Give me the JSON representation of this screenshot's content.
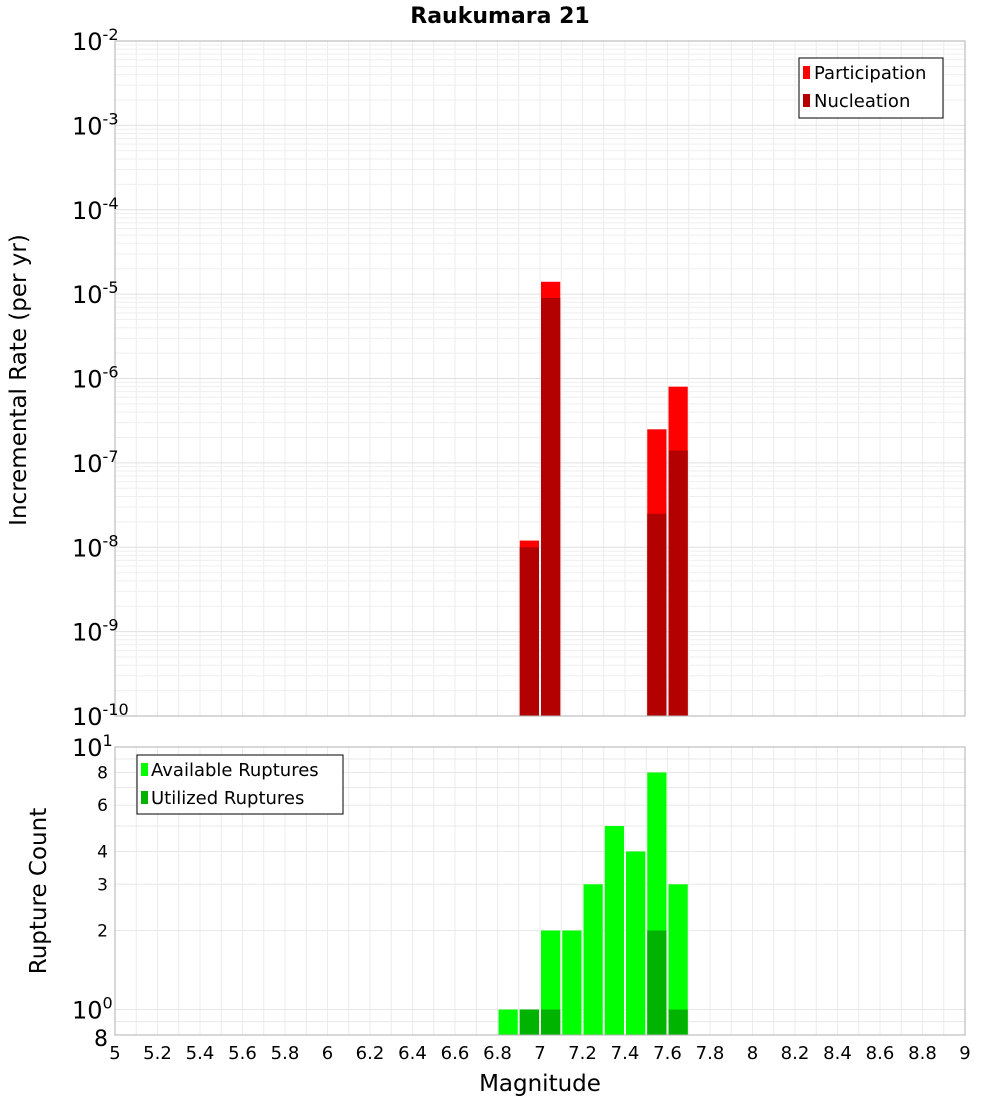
{
  "chart_data": [
    {
      "type": "bar",
      "title": "Raukumara 21",
      "xlabel": "",
      "ylabel": "Incremental Rate (per yr)",
      "yscale": "log",
      "xlim": [
        5,
        9
      ],
      "ylim": [
        1e-10,
        0.01
      ],
      "y_tick_bases": [
        "10",
        "10",
        "10",
        "10",
        "10",
        "10",
        "10",
        "10",
        "10"
      ],
      "y_tick_exponents": [
        "-10",
        "-9",
        "-8",
        "-7",
        "-6",
        "-5",
        "-4",
        "-3",
        "-2"
      ],
      "grid": true,
      "legend": "top-right",
      "bin_width": 0.1,
      "series": [
        {
          "name": "Participation",
          "color": "#ff0000",
          "x": [
            6.95,
            7.05,
            7.55,
            7.65
          ],
          "values": [
            1.2e-08,
            1.4e-05,
            2.5e-07,
            8e-07
          ]
        },
        {
          "name": "Nucleation",
          "color": "#b30000",
          "x": [
            6.95,
            7.05,
            7.55,
            7.65
          ],
          "values": [
            1e-08,
            9e-06,
            2.5e-08,
            1.4e-07
          ]
        }
      ]
    },
    {
      "type": "bar",
      "title": "",
      "xlabel": "Magnitude",
      "ylabel": "Rupture Count",
      "yscale": "log",
      "xlim": [
        5,
        9
      ],
      "ylim": [
        0.8,
        10
      ],
      "x_ticks": [
        "5",
        "5.2",
        "5.4",
        "5.6",
        "5.8",
        "6",
        "6.2",
        "6.4",
        "6.6",
        "6.8",
        "7",
        "7.2",
        "7.4",
        "7.6",
        "7.8",
        "8",
        "8.2",
        "8.4",
        "8.6",
        "8.8",
        "9"
      ],
      "y_ticks": [
        "8",
        "6",
        "4",
        "3",
        "2"
      ],
      "y_tick_values": [
        8,
        6,
        4,
        3,
        2
      ],
      "y_tick_bases": [
        "10",
        "10"
      ],
      "y_tick_exponents": [
        "1",
        "0"
      ],
      "y_tick_bottom": "8",
      "grid": true,
      "legend": "top-left",
      "bin_width": 0.1,
      "series": [
        {
          "name": "Available Ruptures",
          "color": "#00ff00",
          "x": [
            6.85,
            6.95,
            7.05,
            7.15,
            7.25,
            7.35,
            7.45,
            7.55,
            7.65
          ],
          "values": [
            1,
            1,
            2,
            2,
            3,
            5,
            4,
            8,
            3
          ]
        },
        {
          "name": "Utilized Ruptures",
          "color": "#00b300",
          "x": [
            6.95,
            7.05,
            7.55,
            7.65
          ],
          "values": [
            1,
            1,
            2,
            1
          ]
        }
      ]
    }
  ]
}
